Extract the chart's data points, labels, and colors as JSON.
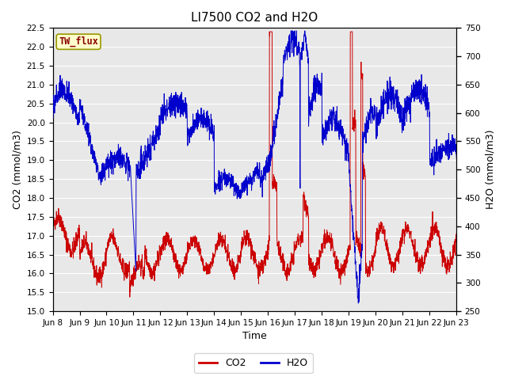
{
  "title": "LI7500 CO2 and H2O",
  "xlabel": "Time",
  "ylabel_left": "CO2 (mmol/m3)",
  "ylabel_right": "H2O (mmol/m3)",
  "co2_ylim": [
    15.0,
    22.5
  ],
  "h2o_ylim": [
    250,
    750
  ],
  "co2_yticks": [
    15.0,
    15.5,
    16.0,
    16.5,
    17.0,
    17.5,
    18.0,
    18.5,
    19.0,
    19.5,
    20.0,
    20.5,
    21.0,
    21.5,
    22.0,
    22.5
  ],
  "h2o_yticks": [
    250,
    300,
    350,
    400,
    450,
    500,
    550,
    600,
    650,
    700,
    750
  ],
  "xtick_labels": [
    "Jun 8",
    "Jun 9",
    "Jun 10",
    "Jun 11",
    "Jun 12",
    "Jun 13",
    "Jun 14",
    "Jun 15",
    "Jun 16",
    "Jun 17",
    "Jun 18",
    "Jun 19",
    "Jun 20",
    "Jun 21",
    "Jun 22",
    "Jun 23"
  ],
  "co2_color": "#cc0000",
  "h2o_color": "#0000cc",
  "background_color": "#ffffff",
  "plot_bg_color": "#e8e8e8",
  "grid_color": "#ffffff",
  "watermark_text": "TW_flux",
  "watermark_fg": "#8b0000",
  "watermark_bg": "#ffffcc",
  "watermark_edge": "#999900",
  "legend_co2": "CO2",
  "legend_h2o": "H2O",
  "title_fontsize": 11,
  "axis_label_fontsize": 9,
  "tick_fontsize": 7.5,
  "legend_fontsize": 9
}
